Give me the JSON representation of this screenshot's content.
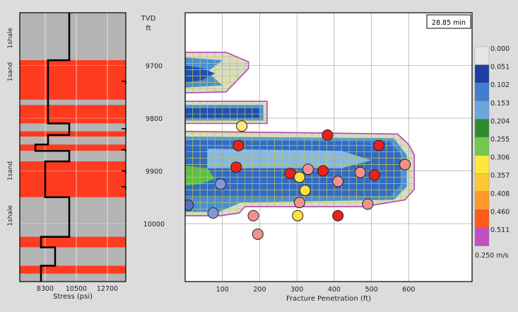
{
  "colors": {
    "background": "#dcdcdc",
    "track_shale": "#b4b4b4",
    "track_sand": "#ff3b1f",
    "stress_line": "#000000",
    "fracture_outline": "#b048b8",
    "grid_mesh": "#c8c850",
    "frac_blue_dark": "#1f4fb4",
    "frac_blue": "#4a8fd4",
    "frac_blue_light": "#86b8e6",
    "frac_green": "#5cc048",
    "frac_light": "#e6ecd8",
    "event_red": "#e8231c",
    "event_pink": "#f29090",
    "event_yellow": "#ffe040",
    "event_lightyellow": "#ffe680",
    "event_blue": "#5a6ec8",
    "event_lightblue": "#8496d6"
  },
  "lithology_track": {
    "labels": [
      {
        "text": "1shale",
        "depth": 9648
      },
      {
        "text": "1sand",
        "depth": 9712
      },
      {
        "text": "1sand",
        "depth": 9900
      },
      {
        "text": "1shale",
        "depth": 9985
      }
    ],
    "stress_axis": {
      "label": "Stress (psi)",
      "ticks": [
        "8300",
        "10500",
        "12700"
      ],
      "tick_values": [
        8300,
        10500,
        12700
      ],
      "range": [
        6500,
        14000
      ]
    },
    "layers": [
      {
        "top": 9600,
        "bottom": 9690,
        "type": "shale"
      },
      {
        "top": 9690,
        "bottom": 9765,
        "type": "sand"
      },
      {
        "top": 9765,
        "bottom": 9775,
        "type": "shale"
      },
      {
        "top": 9775,
        "bottom": 9810,
        "type": "sand"
      },
      {
        "top": 9810,
        "bottom": 9825,
        "type": "shale"
      },
      {
        "top": 9825,
        "bottom": 9835,
        "type": "sand"
      },
      {
        "top": 9835,
        "bottom": 9850,
        "type": "shale"
      },
      {
        "top": 9850,
        "bottom": 9862,
        "type": "sand"
      },
      {
        "top": 9862,
        "bottom": 9882,
        "type": "shale"
      },
      {
        "top": 9882,
        "bottom": 9950,
        "type": "sand"
      },
      {
        "top": 9950,
        "bottom": 10025,
        "type": "shale"
      },
      {
        "top": 10025,
        "bottom": 10045,
        "type": "sand"
      },
      {
        "top": 10045,
        "bottom": 10080,
        "type": "shale"
      },
      {
        "top": 10080,
        "bottom": 10095,
        "type": "sand"
      },
      {
        "top": 10095,
        "bottom": 10110,
        "type": "shale"
      }
    ],
    "stress_profile": [
      [
        10000,
        9600
      ],
      [
        10000,
        9690
      ],
      [
        8500,
        9690
      ],
      [
        8500,
        9810
      ],
      [
        10000,
        9810
      ],
      [
        10000,
        9832
      ],
      [
        8500,
        9832
      ],
      [
        8500,
        9850
      ],
      [
        7600,
        9850
      ],
      [
        7600,
        9862
      ],
      [
        10000,
        9862
      ],
      [
        10000,
        9882
      ],
      [
        8300,
        9882
      ],
      [
        8300,
        9950
      ],
      [
        10000,
        9950
      ],
      [
        10000,
        10025
      ],
      [
        8000,
        10025
      ],
      [
        8000,
        10045
      ],
      [
        9000,
        10045
      ],
      [
        9000,
        10080
      ],
      [
        8000,
        10080
      ],
      [
        8000,
        10110
      ]
    ],
    "perf_marks": [
      9730,
      9820,
      9860,
      9900,
      9930
    ]
  },
  "depth_axis": {
    "title_line1": "TVD",
    "title_line2": "ft",
    "ticks": [
      "9700",
      "9800",
      "9900",
      "10000"
    ],
    "tick_values": [
      9700,
      9800,
      9900,
      10000
    ]
  },
  "chart_data": {
    "type": "scatter",
    "title": "",
    "xlabel": "Fracture Penetration (ft)",
    "ylabel": "TVD ft",
    "xlim": [
      0,
      770
    ],
    "ylim": [
      9600,
      10110
    ],
    "x_ticks": [
      "100",
      "200",
      "300",
      "400",
      "500",
      "600"
    ],
    "x_tick_values": [
      100,
      200,
      300,
      400,
      500,
      600
    ],
    "y_ticks": [
      9700,
      9800,
      9900,
      10000
    ],
    "grid": true,
    "time_label": "28.85 min",
    "legend": {
      "position": "right",
      "labels": [
        "0.000",
        "0.051",
        "0.102",
        "0.153",
        "0.204",
        "0.255",
        "0.306",
        "0.357",
        "0.408",
        "0.460",
        "0.511"
      ],
      "colors": [
        "#e6e6e6",
        "#1f3fa4",
        "#3f7fcc",
        "#6ba6dc",
        "#2e8a2e",
        "#74c850",
        "#ffe83c",
        "#ffc832",
        "#ff9a28",
        "#ff5a1e",
        "#c050c0"
      ],
      "footer": "0.250 m/s"
    },
    "fracture_outline": [
      [
        0,
        9675
      ],
      [
        110,
        9675
      ],
      [
        170,
        9693
      ],
      [
        170,
        9706
      ],
      [
        110,
        9750
      ],
      [
        0,
        9752
      ],
      [
        0,
        9768
      ],
      [
        220,
        9768
      ],
      [
        220,
        9810
      ],
      [
        0,
        9810
      ],
      [
        0,
        9825
      ],
      [
        570,
        9830
      ],
      [
        600,
        9850
      ],
      [
        615,
        9870
      ],
      [
        615,
        9935
      ],
      [
        590,
        9955
      ],
      [
        480,
        9968
      ],
      [
        160,
        9968
      ],
      [
        145,
        9980
      ],
      [
        95,
        9985
      ],
      [
        0,
        9985
      ]
    ],
    "frac_fill_blue": [
      [
        0,
        9685
      ],
      [
        100,
        9690
      ],
      [
        60,
        9712
      ],
      [
        100,
        9738
      ],
      [
        0,
        9742
      ],
      [
        0,
        9775
      ],
      [
        210,
        9775
      ],
      [
        210,
        9805
      ],
      [
        0,
        9805
      ],
      [
        0,
        9835
      ],
      [
        560,
        9838
      ],
      [
        595,
        9870
      ],
      [
        595,
        9930
      ],
      [
        560,
        9955
      ],
      [
        150,
        9960
      ],
      [
        90,
        9978
      ],
      [
        0,
        9978
      ]
    ],
    "frac_fill_green": [
      [
        0,
        9890
      ],
      [
        60,
        9895
      ],
      [
        80,
        9915
      ],
      [
        40,
        9925
      ],
      [
        0,
        9928
      ]
    ],
    "frac_fill_light": [
      [
        60,
        9858
      ],
      [
        420,
        9862
      ],
      [
        500,
        9880
      ],
      [
        420,
        9895
      ],
      [
        60,
        9895
      ]
    ],
    "mesh": {
      "x_step": 20,
      "y_step": 12
    },
    "points": [
      {
        "x": 152,
        "y": 9815,
        "c": "event_lightyellow"
      },
      {
        "x": 382,
        "y": 9832,
        "c": "event_red"
      },
      {
        "x": 143,
        "y": 9852,
        "c": "event_red"
      },
      {
        "x": 520,
        "y": 9852,
        "c": "event_red"
      },
      {
        "x": 590,
        "y": 9888,
        "c": "event_pink"
      },
      {
        "x": 137,
        "y": 9893,
        "c": "event_red"
      },
      {
        "x": 330,
        "y": 9897,
        "c": "event_pink"
      },
      {
        "x": 370,
        "y": 9900,
        "c": "event_red"
      },
      {
        "x": 282,
        "y": 9905,
        "c": "event_red"
      },
      {
        "x": 470,
        "y": 9903,
        "c": "event_pink"
      },
      {
        "x": 508,
        "y": 9908,
        "c": "event_red"
      },
      {
        "x": 307,
        "y": 9912,
        "c": "event_yellow"
      },
      {
        "x": 410,
        "y": 9920,
        "c": "event_pink"
      },
      {
        "x": 95,
        "y": 9925,
        "c": "event_lightblue"
      },
      {
        "x": 322,
        "y": 9937,
        "c": "event_yellow"
      },
      {
        "x": 8,
        "y": 9965,
        "c": "event_blue"
      },
      {
        "x": 307,
        "y": 9960,
        "c": "event_pink"
      },
      {
        "x": 490,
        "y": 9963,
        "c": "event_pink"
      },
      {
        "x": 75,
        "y": 9980,
        "c": "event_lightblue"
      },
      {
        "x": 183,
        "y": 9985,
        "c": "event_pink"
      },
      {
        "x": 302,
        "y": 9985,
        "c": "event_yellow"
      },
      {
        "x": 410,
        "y": 9985,
        "c": "event_red"
      },
      {
        "x": 195,
        "y": 10020,
        "c": "event_pink"
      }
    ]
  }
}
